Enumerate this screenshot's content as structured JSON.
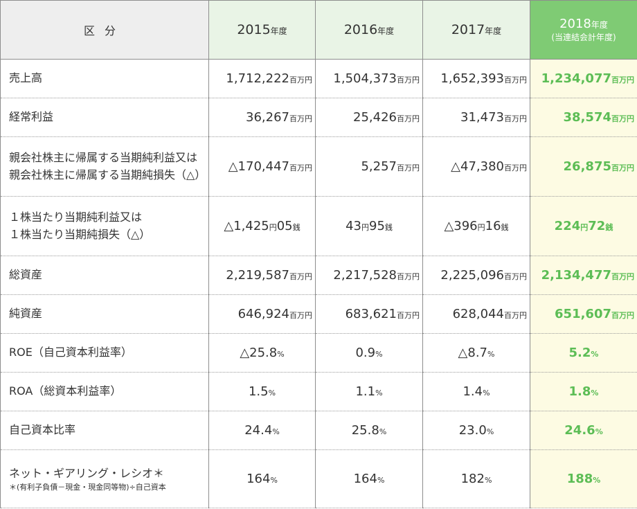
{
  "header": {
    "label": "区分",
    "years": [
      {
        "num": "2015",
        "suffix": "年度"
      },
      {
        "num": "2016",
        "suffix": "年度"
      },
      {
        "num": "2017",
        "suffix": "年度"
      },
      {
        "num": "2018",
        "suffix": "年度",
        "sub": "(当連結会計年度)"
      }
    ]
  },
  "rows": [
    {
      "label1": "売上高",
      "label2": "",
      "note": "",
      "cells": [
        {
          "v": "1,712,222",
          "u": "百万円"
        },
        {
          "v": "1,504,373",
          "u": "百万円"
        },
        {
          "v": "1,652,393",
          "u": "百万円"
        },
        {
          "v": "1,234,077",
          "u": "百万円"
        }
      ]
    },
    {
      "label1": "経常利益",
      "label2": "",
      "note": "",
      "cells": [
        {
          "v": "36,267",
          "u": "百万円"
        },
        {
          "v": "25,426",
          "u": "百万円"
        },
        {
          "v": "31,473",
          "u": "百万円"
        },
        {
          "v": "38,574",
          "u": "百万円"
        }
      ]
    },
    {
      "label1": "親会社株主に帰属する当期純利益又は",
      "label2": "親会社株主に帰属する当期純損失（△）",
      "note": "",
      "cells": [
        {
          "v": "△170,447",
          "u": "百万円"
        },
        {
          "v": "5,257",
          "u": "百万円"
        },
        {
          "v": "△47,380",
          "u": "百万円"
        },
        {
          "v": "26,875",
          "u": "百万円"
        }
      ]
    },
    {
      "label1": "１株当たり当期純利益又は",
      "label2": "１株当たり当期純損失（△）",
      "note": "",
      "cells": [
        {
          "v": "△1,425",
          "u": "円",
          "v2": "05",
          "u2": "銭"
        },
        {
          "v": "43",
          "u": "円",
          "v2": "95",
          "u2": "銭"
        },
        {
          "v": "△396",
          "u": "円",
          "v2": "16",
          "u2": "銭"
        },
        {
          "v": "224",
          "u": "円",
          "v2": "72",
          "u2": "銭"
        }
      ]
    },
    {
      "label1": "総資産",
      "label2": "",
      "note": "",
      "cells": [
        {
          "v": "2,219,587",
          "u": "百万円"
        },
        {
          "v": "2,217,528",
          "u": "百万円"
        },
        {
          "v": "2,225,096",
          "u": "百万円"
        },
        {
          "v": "2,134,477",
          "u": "百万円"
        }
      ]
    },
    {
      "label1": "純資産",
      "label2": "",
      "note": "",
      "cells": [
        {
          "v": "646,924",
          "u": "百万円"
        },
        {
          "v": "683,621",
          "u": "百万円"
        },
        {
          "v": "628,044",
          "u": "百万円"
        },
        {
          "v": "651,607",
          "u": "百万円"
        }
      ]
    },
    {
      "label1": "ROE（自己資本利益率）",
      "label2": "",
      "note": "",
      "cells": [
        {
          "v": "△25.8",
          "u": "%"
        },
        {
          "v": "0.9",
          "u": "%"
        },
        {
          "v": "△8.7",
          "u": "%"
        },
        {
          "v": "5.2",
          "u": "%"
        }
      ]
    },
    {
      "label1": "ROA（総資本利益率）",
      "label2": "",
      "note": "",
      "cells": [
        {
          "v": "1.5",
          "u": "%"
        },
        {
          "v": "1.1",
          "u": "%"
        },
        {
          "v": "1.4",
          "u": "%"
        },
        {
          "v": "1.8",
          "u": "%"
        }
      ]
    },
    {
      "label1": "自己資本比率",
      "label2": "",
      "note": "",
      "cells": [
        {
          "v": "24.4",
          "u": "%"
        },
        {
          "v": "25.8",
          "u": "%"
        },
        {
          "v": "23.0",
          "u": "%"
        },
        {
          "v": "24.6",
          "u": "%"
        }
      ]
    },
    {
      "label1": "ネット・ギアリング・レシオ＊",
      "label2": "",
      "note": "＊(有利子負債－現金・現金同等物)÷自己資本",
      "cells": [
        {
          "v": "164",
          "u": "%"
        },
        {
          "v": "164",
          "u": "%"
        },
        {
          "v": "182",
          "u": "%"
        },
        {
          "v": "188",
          "u": "%"
        }
      ]
    }
  ],
  "colors": {
    "current_header_bg": "#7fcb74",
    "current_col_bg": "#fdfbe3",
    "current_text": "#5cbd55",
    "header_bg": "#e9f4e6"
  }
}
